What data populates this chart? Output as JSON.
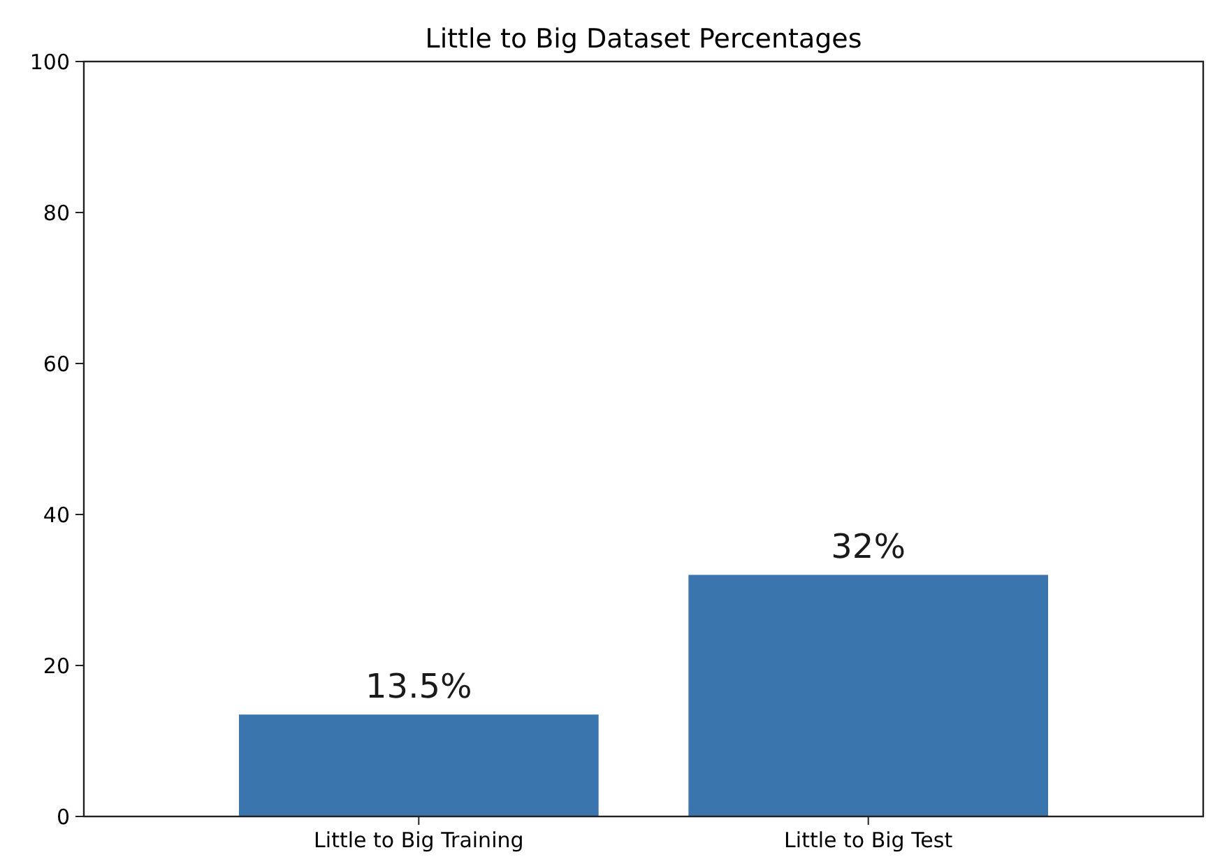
{
  "chart_data": {
    "type": "bar",
    "title": "Little to Big Dataset Percentages",
    "categories": [
      "Little to Big Training",
      "Little to Big Test"
    ],
    "values": [
      13.5,
      32
    ],
    "color": "#3a75ae",
    "value_labels": [
      "13.5%",
      "32%"
    ],
    "ylim": [
      0,
      100
    ],
    "yticks": [
      0,
      20,
      40,
      60,
      80,
      100
    ]
  }
}
